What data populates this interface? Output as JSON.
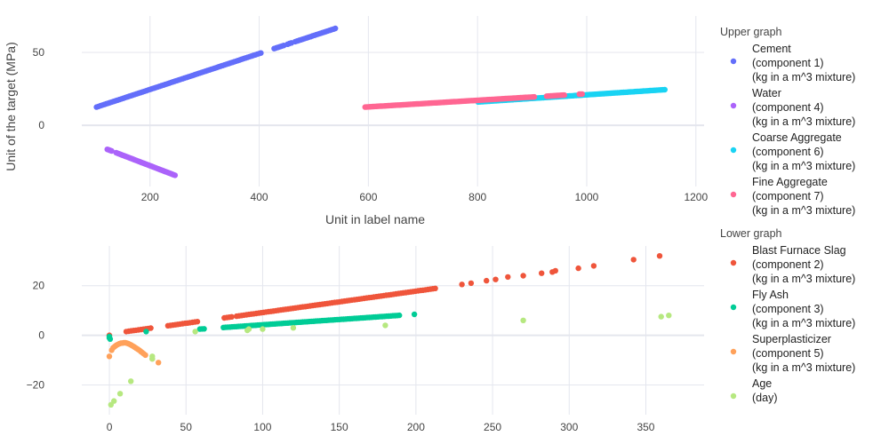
{
  "chart_data": [
    {
      "id": "upper",
      "type": "scatter",
      "xlabel": "Unit in label name",
      "ylabel": "Unit of the target (MPa)",
      "xlim": [
        75,
        1215
      ],
      "ylim": [
        -42,
        75
      ],
      "xticks": [
        200,
        400,
        600,
        800,
        1000,
        1200
      ],
      "yticks": [
        0,
        50
      ],
      "grid": true,
      "legend_group": "Upper graph",
      "series": [
        {
          "name": "Cement (component 1) (kg in a m^3 mixture)",
          "legend": [
            "Cement",
            "(component 1)",
            "(kg in a m^3 mixture)"
          ],
          "color": "#636efa",
          "segments": [
            [
              102,
              12.5,
              540,
              66.5
            ]
          ],
          "step": 3.5,
          "gaps": [
            [
              405,
              425
            ],
            [
              445,
              450
            ],
            [
              460,
              465
            ]
          ]
        },
        {
          "name": "Water (component 4) (kg in a m^3 mixture)",
          "legend": [
            "Water",
            "(component 4)",
            "(kg in a m^3 mixture)"
          ],
          "color": "#ab63fa",
          "segments": [
            [
              121.8,
              -16.5,
              247,
              -34.5
            ]
          ],
          "step": 2,
          "gaps": [
            [
              130,
              136
            ]
          ]
        },
        {
          "name": "Coarse Aggregate (component 6) (kg in a m^3 mixture)",
          "legend": [
            "Coarse Aggregate",
            "(component 6)",
            "(kg in a m^3 mixture)"
          ],
          "color": "#19d3f3",
          "segments": [
            [
              801,
              16,
              1145,
              24.5
            ]
          ],
          "step": 3,
          "gaps": []
        },
        {
          "name": "Fine Aggregate (component 7) (kg in a m^3 mixture)",
          "legend": [
            "Fine Aggregate",
            "(component 7)",
            "(kg in a m^3 mixture)"
          ],
          "color": "#ff6692",
          "segments": [
            [
              594,
              12.5,
              993,
              21.5
            ]
          ],
          "step": 2.5,
          "gaps": [
            [
              905,
              925
            ],
            [
              960,
              985
            ]
          ]
        }
      ]
    },
    {
      "id": "lower",
      "type": "scatter",
      "xlabel": "",
      "ylabel": "",
      "xlim": [
        -18,
        388
      ],
      "ylim": [
        -32,
        36
      ],
      "xticks": [
        0,
        50,
        100,
        150,
        200,
        250,
        300,
        350
      ],
      "yticks": [
        -20,
        0,
        20
      ],
      "grid": true,
      "legend_group": "Lower graph",
      "series": [
        {
          "name": "Blast Furnace Slag (component 2) (kg in a m^3 mixture)",
          "legend": [
            "Blast Furnace Slag",
            "(component 2)",
            "(kg in a m^3 mixture)"
          ],
          "color": "#ef553b",
          "segments": [
            [
              11,
              1.5,
              214,
              19
            ]
          ],
          "step": 1.6,
          "gaps": [
            [
              28,
              38
            ],
            [
              58,
              74
            ],
            [
              80,
              82
            ]
          ],
          "extra": [
            [
              0,
              0
            ],
            [
              230,
              20.5
            ],
            [
              236,
              21
            ],
            [
              246,
              22
            ],
            [
              252,
              22.5
            ],
            [
              260,
              23.5
            ],
            [
              270,
              24
            ],
            [
              282,
              25
            ],
            [
              289,
              25.5
            ],
            [
              291,
              26
            ],
            [
              306,
              27
            ],
            [
              316,
              28
            ],
            [
              342,
              30.5
            ],
            [
              359,
              32
            ]
          ]
        },
        {
          "name": "Fly Ash (component 3) (kg in a m^3 mixture)",
          "legend": [
            "Fly Ash",
            "(component 3)",
            "(kg in a m^3 mixture)"
          ],
          "color": "#00cc96",
          "segments": [
            [
              59,
              2.5,
              200,
              8.5
            ]
          ],
          "step": 1.4,
          "gaps": [
            [
              62,
              74
            ],
            [
              190,
              198
            ]
          ],
          "extra": [
            [
              0,
              -0.5
            ],
            [
              0,
              -1
            ],
            [
              0.5,
              -1.5
            ],
            [
              24,
              1.5
            ]
          ]
        },
        {
          "name": "Superplasticizer (component 5) (kg in a m^3 mixture)",
          "legend": [
            "Superplasticizer",
            "(component 5)",
            "(kg in a m^3 mixture)"
          ],
          "color": "#ffa15a",
          "extra": [
            [
              0,
              -8.5
            ],
            [
              1.5,
              -6
            ],
            [
              2.5,
              -5
            ],
            [
              3.5,
              -4.5
            ],
            [
              4.5,
              -4
            ],
            [
              5.5,
              -3.7
            ],
            [
              6.5,
              -3.4
            ],
            [
              7.5,
              -3.2
            ],
            [
              8.5,
              -3.1
            ],
            [
              9.5,
              -3
            ],
            [
              10.5,
              -3
            ],
            [
              11.5,
              -3.2
            ],
            [
              12.5,
              -3.4
            ],
            [
              13.5,
              -3.7
            ],
            [
              14.5,
              -4
            ],
            [
              15.5,
              -4.4
            ],
            [
              16.5,
              -4.8
            ],
            [
              17.5,
              -5.2
            ],
            [
              18.5,
              -5.6
            ],
            [
              19.5,
              -6
            ],
            [
              20.5,
              -6.5
            ],
            [
              21.5,
              -7
            ],
            [
              22.5,
              -7.5
            ],
            [
              23.5,
              -8
            ],
            [
              28,
              -9.5
            ],
            [
              32,
              -11
            ]
          ]
        },
        {
          "name": "Age (day)",
          "legend": [
            "Age",
            "(day)"
          ],
          "color": "#b6e880",
          "extra": [
            [
              1,
              -28
            ],
            [
              3,
              -26.5
            ],
            [
              7,
              -23.5
            ],
            [
              14,
              -18.5
            ],
            [
              28,
              -8.5
            ],
            [
              28,
              -9.5
            ],
            [
              56,
              1.5
            ],
            [
              90,
              2
            ],
            [
              91,
              2.5
            ],
            [
              100,
              2.5
            ],
            [
              120,
              3
            ],
            [
              180,
              4
            ],
            [
              270,
              6
            ],
            [
              360,
              7.5
            ],
            [
              365,
              8
            ]
          ]
        }
      ]
    }
  ]
}
